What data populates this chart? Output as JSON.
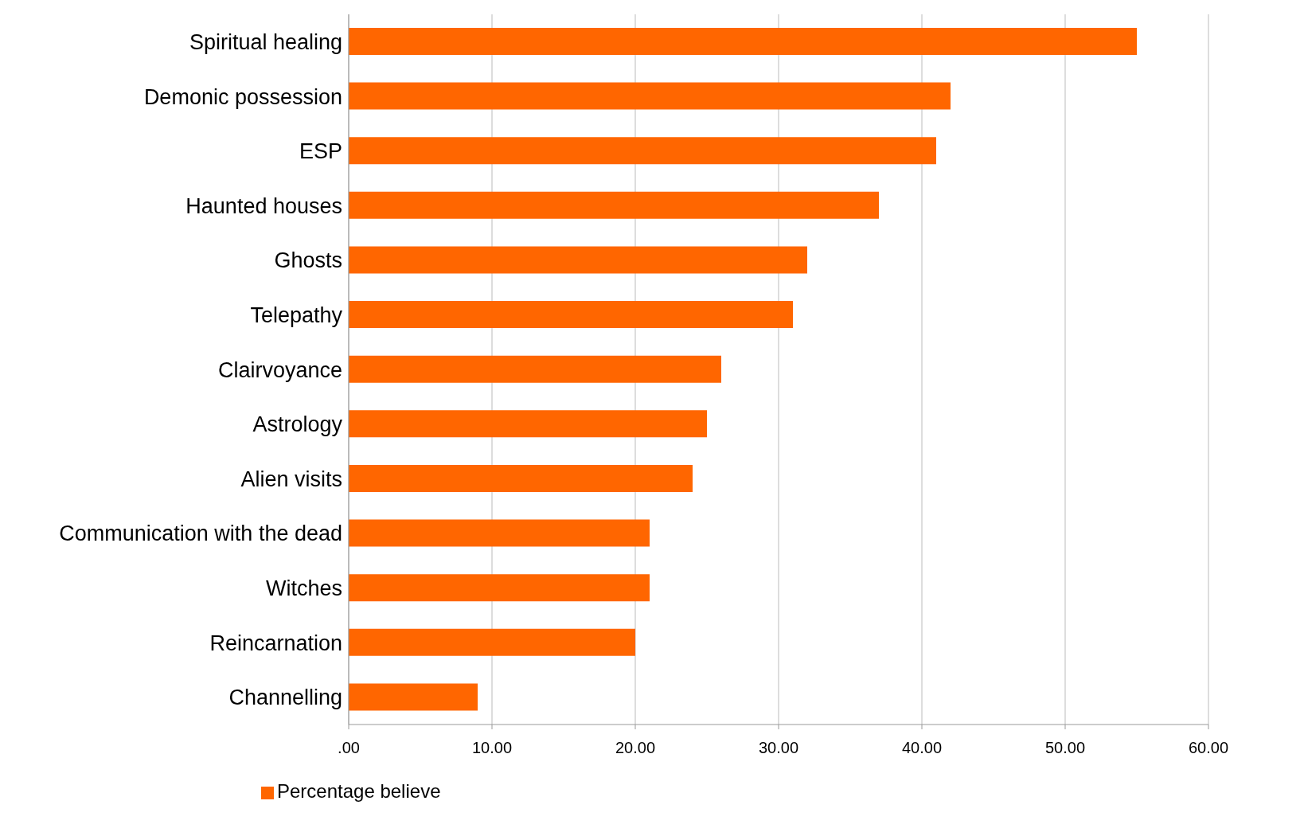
{
  "chart_data": {
    "type": "bar",
    "orientation": "horizontal",
    "categories": [
      "Spiritual healing",
      "Demonic possession",
      "ESP",
      "Haunted houses",
      "Ghosts",
      "Telepathy",
      "Clairvoyance",
      "Astrology",
      "Alien visits",
      "Communication with the dead",
      "Witches",
      "Reincarnation",
      "Channelling"
    ],
    "series": [
      {
        "name": "Percentage believe",
        "color": "#ff6600",
        "values": [
          55,
          42,
          41,
          37,
          32,
          31,
          26,
          25,
          24,
          21,
          21,
          20,
          9
        ]
      }
    ],
    "xlim": [
      0,
      60
    ],
    "xticks": [
      {
        "value": 0,
        "label": ".00"
      },
      {
        "value": 10,
        "label": "10.00"
      },
      {
        "value": 20,
        "label": "20.00"
      },
      {
        "value": 30,
        "label": "30.00"
      },
      {
        "value": 40,
        "label": "40.00"
      },
      {
        "value": 50,
        "label": "50.00"
      },
      {
        "value": 60,
        "label": "60.00"
      }
    ],
    "grid": "x",
    "legend": "bottom"
  }
}
